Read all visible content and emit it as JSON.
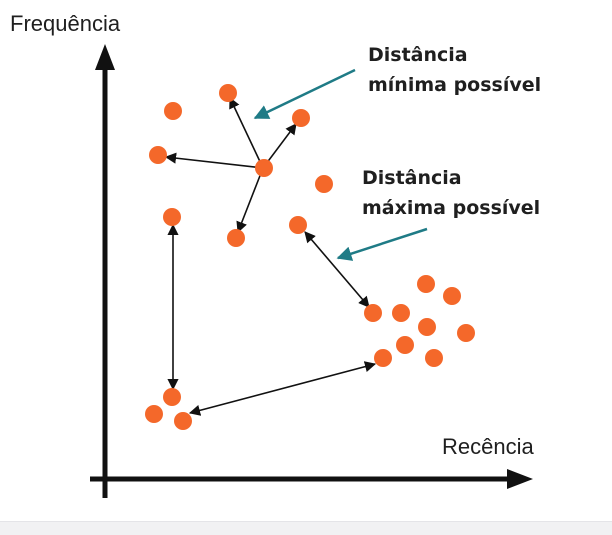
{
  "axes": {
    "y_label": "Frequência",
    "x_label": "Recência"
  },
  "annotations": {
    "min_line1": "Distância",
    "min_line2": "mínima possível",
    "max_line1": "Distância",
    "max_line2": "máxima possível"
  },
  "colors": {
    "point": "#f4682a",
    "axis": "#111111",
    "connector": "#111111",
    "pointer_arrow": "#1f7b86",
    "background": "#ffffff"
  }
}
